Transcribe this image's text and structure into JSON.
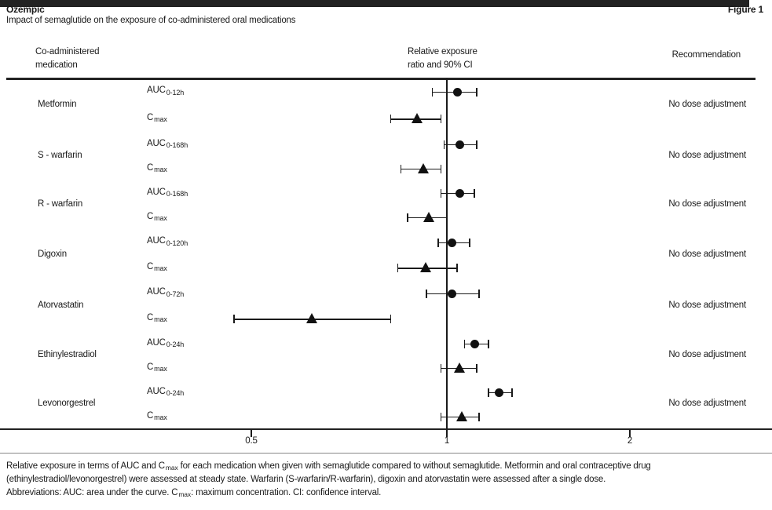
{
  "header": {
    "title": "Ozempic",
    "subtitle": "Impact of semaglutide on the exposure of co-administered oral medications",
    "figure_label": "Figure 1"
  },
  "columns": {
    "medication_line1": "Co-administered",
    "medication_line2": "medication",
    "exposure_line1": "Relative exposure",
    "exposure_line2": "ratio and 90% CI",
    "recommendation": "Recommendation"
  },
  "colors": {
    "text": "#1a1a1a",
    "line": "#222222",
    "marker": "#111111",
    "background": "#ffffff"
  },
  "chart_data": {
    "type": "forest",
    "title": "Impact of semaglutide on the exposure of co-administered oral medications",
    "x_axis": {
      "scale": "log2",
      "tick_labels": [
        "0.5",
        "1",
        "2"
      ],
      "tick_values": [
        0.5,
        1,
        2
      ],
      "reference_value": 1
    },
    "marker_legend": {
      "circle": "AUC",
      "triangle": "Cmax"
    },
    "sections": [
      {
        "medications": [
          {
            "name": "Metformin",
            "recommendation": "No dose adjustment",
            "rows": [
              {
                "param_base": "AUC",
                "param_sub": "0-12h",
                "marker": "circle",
                "value": 1.04,
                "ci_low": 0.95,
                "ci_high": 1.12
              },
              {
                "param_base": "C",
                "param_sub": "max",
                "marker": "triangle",
                "value": 0.9,
                "ci_low": 0.82,
                "ci_high": 0.98
              }
            ]
          }
        ]
      },
      {
        "medications": [
          {
            "name": "S - warfarin",
            "recommendation": "No dose adjustment",
            "rows": [
              {
                "param_base": "AUC",
                "param_sub": "0-168h",
                "marker": "circle",
                "value": 1.05,
                "ci_low": 0.99,
                "ci_high": 1.12
              },
              {
                "param_base": "C",
                "param_sub": "max",
                "marker": "triangle",
                "value": 0.92,
                "ci_low": 0.85,
                "ci_high": 0.98
              }
            ]
          },
          {
            "name": "R - warfarin",
            "recommendation": "No dose adjustment",
            "rows": [
              {
                "param_base": "AUC",
                "param_sub": "0-168h",
                "marker": "circle",
                "value": 1.05,
                "ci_low": 0.98,
                "ci_high": 1.11
              },
              {
                "param_base": "C",
                "param_sub": "max",
                "marker": "triangle",
                "value": 0.94,
                "ci_low": 0.87,
                "ci_high": 1.0
              }
            ]
          }
        ]
      },
      {
        "medications": [
          {
            "name": "Digoxin",
            "recommendation": "No dose adjustment",
            "rows": [
              {
                "param_base": "AUC",
                "param_sub": "0-120h",
                "marker": "circle",
                "value": 1.02,
                "ci_low": 0.97,
                "ci_high": 1.09
              },
              {
                "param_base": "C",
                "param_sub": "max",
                "marker": "triangle",
                "value": 0.93,
                "ci_low": 0.84,
                "ci_high": 1.04
              }
            ]
          }
        ]
      },
      {
        "medications": [
          {
            "name": "Atorvastatin",
            "recommendation": "No dose adjustment",
            "rows": [
              {
                "param_base": "AUC",
                "param_sub": "0-72h",
                "marker": "circle",
                "value": 1.02,
                "ci_low": 0.93,
                "ci_high": 1.13
              },
              {
                "param_base": "C",
                "param_sub": "max",
                "marker": "triangle",
                "value": 0.62,
                "ci_low": 0.47,
                "ci_high": 0.82
              }
            ]
          }
        ]
      },
      {
        "medications": [
          {
            "name": "Ethinylestradiol",
            "recommendation": "No dose adjustment",
            "rows": [
              {
                "param_base": "AUC",
                "param_sub": "0-24h",
                "marker": "circle",
                "value": 1.11,
                "ci_low": 1.07,
                "ci_high": 1.17
              },
              {
                "param_base": "C",
                "param_sub": "max",
                "marker": "triangle",
                "value": 1.05,
                "ci_low": 0.98,
                "ci_high": 1.12
              }
            ]
          },
          {
            "name": "Levonorgestrel",
            "recommendation": "No dose adjustment",
            "rows": [
              {
                "param_base": "AUC",
                "param_sub": "0-24h",
                "marker": "circle",
                "value": 1.22,
                "ci_low": 1.17,
                "ci_high": 1.28
              },
              {
                "param_base": "C",
                "param_sub": "max",
                "marker": "triangle",
                "value": 1.06,
                "ci_low": 0.98,
                "ci_high": 1.13
              }
            ]
          }
        ]
      }
    ]
  },
  "footnote": {
    "lines": [
      [
        {
          "t": "Relative exposure in terms of AUC and C"
        },
        {
          "t": "max",
          "sub": true
        },
        {
          "t": " for each medication when given with semaglutide compared to without semaglutide. Metformin and oral contraceptive drug"
        }
      ],
      [
        {
          "t": "(ethinylestradiol/levonorgestrel) were assessed at steady state. Warfarin (S-warfarin/R-warfarin), digoxin and atorvastatin were assessed after a single dose."
        }
      ],
      [
        {
          "t": "Abbreviations: AUC: area under the curve. C"
        },
        {
          "t": "max",
          "sub": true
        },
        {
          "t": ": maximum concentration. CI: confidence interval."
        }
      ]
    ]
  }
}
